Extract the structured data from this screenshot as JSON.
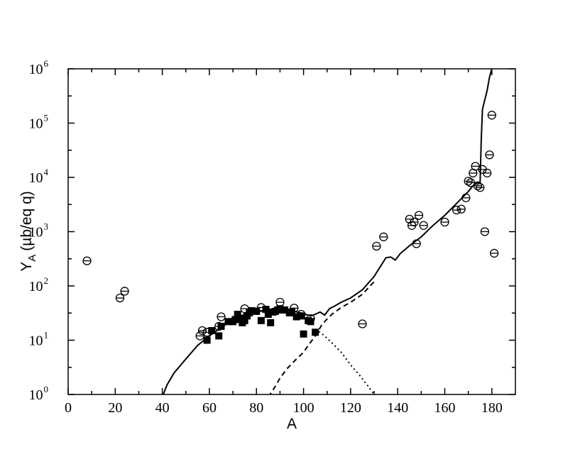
{
  "chart_data": {
    "type": "scatter",
    "xlabel": "A",
    "ylabel_main": "Y",
    "ylabel_sub": "A",
    "ylabel_unit": "(µb/eq q)",
    "xlim": [
      0,
      190
    ],
    "ylim": [
      1,
      1000000
    ],
    "yscale": "log",
    "grid": false,
    "legend": "none",
    "x_ticks": [
      0,
      20,
      40,
      60,
      80,
      100,
      120,
      140,
      160,
      180
    ],
    "y_ticks": [
      {
        "base": "10",
        "exp": "0"
      },
      {
        "base": "10",
        "exp": "1"
      },
      {
        "base": "10",
        "exp": "2"
      },
      {
        "base": "10",
        "exp": "3"
      },
      {
        "base": "10",
        "exp": "4"
      },
      {
        "base": "10",
        "exp": "5"
      },
      {
        "base": "10",
        "exp": "6"
      }
    ],
    "series": [
      {
        "style": "open-circle",
        "points": [
          [
            8,
            290
          ],
          [
            22,
            60
          ],
          [
            24,
            80
          ],
          [
            56,
            12
          ],
          [
            57,
            15
          ],
          [
            59,
            14
          ],
          [
            64,
            18
          ],
          [
            65,
            27
          ],
          [
            75,
            38
          ],
          [
            82,
            40
          ],
          [
            90,
            50
          ],
          [
            96,
            39
          ],
          [
            99,
            30
          ],
          [
            103,
            25
          ],
          [
            125,
            20
          ],
          [
            131,
            540
          ],
          [
            134,
            800
          ],
          [
            145,
            1700
          ],
          [
            146,
            1300
          ],
          [
            147,
            1500
          ],
          [
            148,
            600
          ],
          [
            149,
            2000
          ],
          [
            151,
            1300
          ],
          [
            160,
            1500
          ],
          [
            165,
            2500
          ],
          [
            167,
            2600
          ],
          [
            169,
            4200
          ],
          [
            170,
            8500
          ],
          [
            171,
            8000
          ],
          [
            172,
            12000
          ],
          [
            173,
            16000
          ],
          [
            174,
            7000
          ],
          [
            175,
            6500
          ],
          [
            176,
            14000
          ],
          [
            177,
            1000
          ],
          [
            178,
            12000
          ],
          [
            179,
            26000
          ],
          [
            180,
            140000
          ],
          [
            181,
            400
          ]
        ]
      },
      {
        "style": "filled-square",
        "points": [
          [
            59,
            10
          ],
          [
            61,
            15
          ],
          [
            64,
            12
          ],
          [
            65,
            18
          ],
          [
            68,
            22
          ],
          [
            70,
            22
          ],
          [
            71,
            24
          ],
          [
            72,
            30
          ],
          [
            73,
            25
          ],
          [
            74,
            21
          ],
          [
            75,
            23
          ],
          [
            76,
            28
          ],
          [
            77,
            32
          ],
          [
            78,
            35
          ],
          [
            80,
            34
          ],
          [
            82,
            23
          ],
          [
            84,
            37
          ],
          [
            85,
            30
          ],
          [
            86,
            21
          ],
          [
            87,
            33
          ],
          [
            88,
            34
          ],
          [
            89,
            36
          ],
          [
            90,
            38
          ],
          [
            92,
            36
          ],
          [
            94,
            32
          ],
          [
            95,
            33
          ],
          [
            97,
            27
          ],
          [
            99,
            28
          ],
          [
            100,
            13
          ],
          [
            102,
            23
          ],
          [
            103,
            22
          ],
          [
            105,
            14
          ]
        ]
      },
      {
        "style": "solid-line",
        "points": [
          [
            40,
            0.9
          ],
          [
            42,
            1.5
          ],
          [
            45,
            2.5
          ],
          [
            50,
            4.5
          ],
          [
            55,
            8
          ],
          [
            60,
            12
          ],
          [
            65,
            17
          ],
          [
            70,
            24
          ],
          [
            75,
            30
          ],
          [
            80,
            34
          ],
          [
            85,
            36
          ],
          [
            90,
            37
          ],
          [
            95,
            35
          ],
          [
            100,
            31
          ],
          [
            103,
            28
          ],
          [
            105,
            30
          ],
          [
            107,
            33
          ],
          [
            109,
            29
          ],
          [
            111,
            38
          ],
          [
            113,
            42
          ],
          [
            116,
            50
          ],
          [
            120,
            60
          ],
          [
            125,
            85
          ],
          [
            130,
            150
          ],
          [
            135,
            330
          ],
          [
            137,
            340
          ],
          [
            139,
            300
          ],
          [
            141,
            390
          ],
          [
            145,
            550
          ],
          [
            150,
            800
          ],
          [
            155,
            1300
          ],
          [
            160,
            2000
          ],
          [
            165,
            3300
          ],
          [
            170,
            5500
          ],
          [
            172,
            7000
          ],
          [
            174,
            8000
          ],
          [
            175,
            8000
          ],
          [
            175.5,
            50000
          ],
          [
            176,
            180000
          ],
          [
            178,
            400000
          ],
          [
            179,
            700000
          ],
          [
            180,
            1000000
          ]
        ]
      },
      {
        "style": "dashed-line",
        "points": [
          [
            85,
            0.9
          ],
          [
            87,
            1.2
          ],
          [
            90,
            2
          ],
          [
            93,
            3
          ],
          [
            97,
            4.5
          ],
          [
            100,
            6
          ],
          [
            102,
            8
          ],
          [
            105,
            12
          ],
          [
            108,
            20
          ],
          [
            112,
            30
          ],
          [
            116,
            40
          ],
          [
            120,
            50
          ],
          [
            125,
            70
          ],
          [
            130,
            120
          ]
        ]
      },
      {
        "style": "dotted-line",
        "points": [
          [
            105,
            16
          ],
          [
            108,
            13
          ],
          [
            112,
            9
          ],
          [
            116,
            6
          ],
          [
            120,
            3.5
          ],
          [
            124,
            2.2
          ],
          [
            127,
            1.5
          ],
          [
            130,
            1
          ]
        ]
      }
    ]
  }
}
